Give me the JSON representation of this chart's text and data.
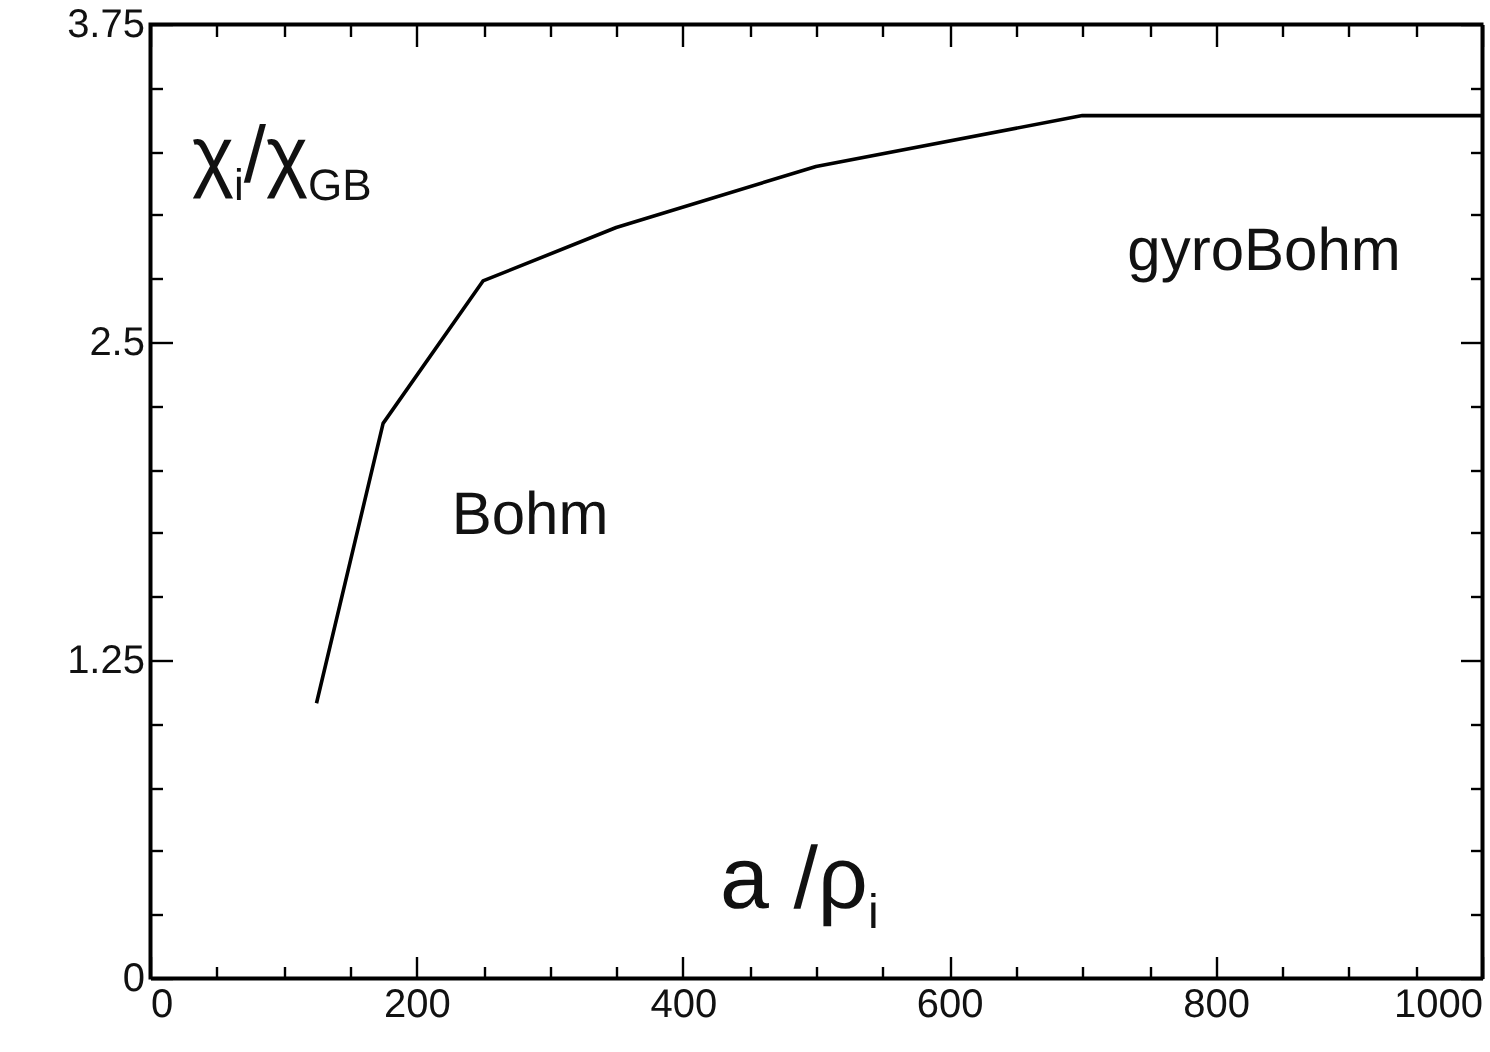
{
  "chart_data": {
    "type": "line",
    "xlabel": "a /ρ$_{i}$",
    "ylabel": "χ$_{i}$/χ$_{GB}$",
    "x": [
      125,
      175,
      250,
      350,
      500,
      700,
      1000
    ],
    "series": [
      {
        "color": "#000000",
        "values": [
          1.08,
          2.18,
          2.74,
          2.95,
          3.19,
          3.39,
          3.39
        ]
      }
    ],
    "xlim": [
      0,
      1000
    ],
    "xticks": [
      0,
      {
        "value": 50,
        "label": null
      },
      200,
      {
        "value": 100,
        "label": null
      },
      {
        "value": 150,
        "label": null
      },
      {
        "value": 250,
        "label": null
      },
      {
        "value": 300,
        "label": null
      },
      {
        "value": 350,
        "label": null
      },
      400,
      {
        "value": 450,
        "label": null
      },
      {
        "value": 500,
        "label": null
      },
      {
        "value": 550,
        "label": null
      },
      600,
      {
        "value": 650,
        "label": null
      },
      {
        "value": 700,
        "label": null
      },
      {
        "value": 750,
        "label": null
      },
      800,
      {
        "value": 850,
        "label": null
      },
      {
        "value": 900,
        "label": null
      },
      {
        "value": 950,
        "label": null
      },
      1000
    ],
    "ylim": [
      0,
      3.75
    ],
    "yticks": [
      0,
      {
        "value": 0.25,
        "label": null
      },
      {
        "value": 0.5,
        "label": null
      },
      {
        "value": 0.75,
        "label": null
      },
      {
        "value": 1,
        "label": null
      },
      1.25,
      {
        "value": 1.5,
        "label": null
      },
      {
        "value": 1.75,
        "label": null
      },
      {
        "value": 2,
        "label": null
      },
      {
        "value": 2.25,
        "label": null
      },
      2.5,
      {
        "value": 2.75,
        "label": null
      },
      {
        "value": 3,
        "label": null
      },
      {
        "value": 3.25,
        "label": null
      },
      {
        "value": 3.5,
        "label": null
      },
      3.75
    ],
    "annotations": [
      "Bohm",
      "gyroBohm"
    ],
    "grid": false,
    "marker": "none",
    "line_style": "solid"
  }
}
